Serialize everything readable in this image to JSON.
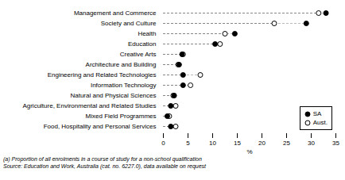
{
  "chart_data": {
    "type": "dot",
    "orientation": "horizontal",
    "xlabel": "%",
    "categories": [
      "Food, Hospitality and Personal Services",
      "Mixed Field Programmes",
      "Agriculture, Environmental and Related Studies",
      "Natural and Physical Sciences",
      "Information Technology",
      "Engineering and Related Technologies",
      "Architecture and Building",
      "Creative Arts",
      "Education",
      "Health",
      "Society and Culture",
      "Management and Commerce"
    ],
    "series": [
      {
        "name": "SA",
        "color": "#000000",
        "marker": "filled",
        "values": [
          1.5,
          0.8,
          1.5,
          2.2,
          4.0,
          4.0,
          3.2,
          3.8,
          10.5,
          14.5,
          29.0,
          33.0
        ]
      },
      {
        "name": "Aust.",
        "color": "#000000",
        "marker": "open",
        "values": [
          2.5,
          1.2,
          2.5,
          2.0,
          5.5,
          7.5,
          3.0,
          4.0,
          11.5,
          12.5,
          22.5,
          31.5
        ]
      }
    ],
    "xlim": [
      0,
      35
    ],
    "xticks": [
      0,
      5,
      10,
      15,
      20,
      25,
      30,
      35
    ],
    "legend": "lower right",
    "line_style": "dashed",
    "grid": false,
    "annotations": [
      "(a) Proportion of all enrolments in a course of study for a non-school qualification",
      "Source: Education and Work, Australia (cat. no. 6227.0), data available on request"
    ]
  }
}
